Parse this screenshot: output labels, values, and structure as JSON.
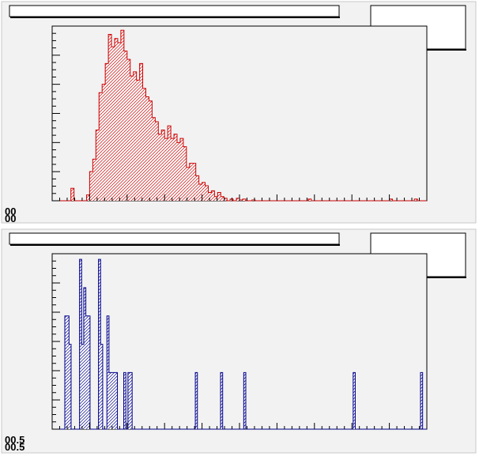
{
  "window": {
    "background": "#ffffff",
    "pad_color": "#f2f2f2"
  },
  "pads": [
    {
      "id": "top",
      "title": "",
      "stats": "",
      "color": "#cc0000",
      "fill_pattern": "hatch-red",
      "y_tick_text": "00",
      "chart_data": {
        "type": "bar",
        "histogram": true,
        "xlim": [
          0,
          120
        ],
        "ylim": [
          0,
          210
        ],
        "values": [
          0,
          0,
          0,
          0,
          0,
          0,
          15,
          0,
          0,
          0,
          0,
          7,
          35,
          50,
          85,
          130,
          140,
          165,
          200,
          185,
          195,
          190,
          205,
          180,
          170,
          150,
          155,
          145,
          165,
          135,
          125,
          120,
          100,
          95,
          80,
          85,
          75,
          90,
          75,
          80,
          70,
          75,
          65,
          40,
          45,
          45,
          30,
          20,
          22,
          18,
          10,
          12,
          5,
          10,
          5,
          3,
          0,
          2,
          0,
          3,
          1,
          2,
          0,
          0,
          1,
          0,
          0,
          0,
          0,
          0,
          0,
          0,
          0,
          0,
          0,
          0,
          0,
          0,
          0,
          0,
          0,
          0,
          2,
          0,
          0,
          0,
          0,
          0,
          0,
          0,
          0,
          0,
          0,
          0,
          0,
          0,
          0,
          0,
          0,
          0,
          0,
          0,
          0,
          0,
          0,
          0,
          0,
          0,
          2,
          0,
          0,
          0,
          0,
          0,
          0,
          0,
          2,
          0,
          0,
          0
        ]
      }
    },
    {
      "id": "bottom",
      "title": "",
      "stats": "",
      "color": "#00008b",
      "fill_pattern": "hatch-blue",
      "y_tick_text": "00.5",
      "chart_data": {
        "type": "bar",
        "histogram": true,
        "xlim": [
          0,
          120
        ],
        "ylim": [
          0,
          6.2
        ],
        "values": [
          0,
          0,
          0,
          0,
          0,
          0,
          4,
          4,
          3,
          0,
          0,
          0,
          0,
          6,
          3,
          5,
          4,
          4,
          0,
          0,
          0,
          0,
          6,
          3,
          0,
          0,
          4,
          2,
          2,
          2,
          2,
          0,
          0,
          0,
          2,
          0,
          2,
          2,
          0,
          0,
          0,
          0,
          0,
          0,
          0,
          0,
          0,
          0,
          0,
          0,
          0,
          0,
          0,
          0,
          0,
          0,
          0,
          0,
          0,
          0,
          0,
          0,
          0,
          0,
          0,
          0,
          0,
          0,
          2,
          0,
          0,
          0,
          0,
          0,
          0,
          0,
          0,
          0,
          0,
          0,
          2,
          0,
          0,
          0,
          0,
          0,
          0,
          0,
          0,
          0,
          0,
          2,
          0,
          0,
          0,
          0,
          0,
          0,
          0,
          0,
          0,
          0,
          0,
          0,
          0,
          0,
          0,
          0,
          0,
          0,
          0,
          0,
          0,
          0,
          0,
          0,
          0,
          0,
          0,
          0,
          0,
          0,
          0,
          0,
          0,
          0,
          0,
          0,
          0,
          0,
          0,
          0,
          0,
          0,
          0,
          0,
          0,
          0,
          0,
          0,
          0,
          0,
          0,
          2,
          0,
          0,
          0,
          0,
          0,
          0,
          0,
          0,
          0,
          0,
          0,
          0,
          0,
          0,
          0,
          0,
          0,
          0,
          0,
          0,
          0,
          0,
          0,
          0,
          0,
          0,
          0,
          0,
          0,
          0,
          0,
          2,
          0,
          0
        ]
      }
    }
  ]
}
